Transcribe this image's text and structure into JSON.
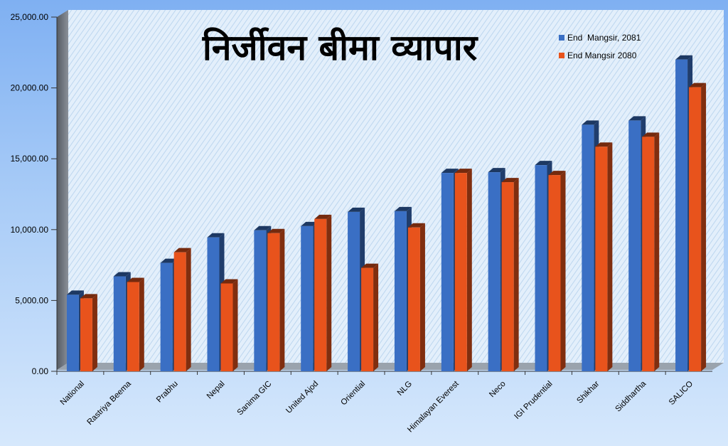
{
  "chart_data": {
    "type": "bar",
    "title": "निर्जीवन बीमा व्यापार",
    "categories": [
      "National",
      "Rastriya Beema",
      "Prabhu",
      "Nepal",
      "Sanima GIC",
      "United Ajod",
      "Oriential",
      "NLG",
      "Himalayan Everest",
      "Neco",
      "IGI Prudential",
      "Shikhar",
      "Siddhartha",
      "SALICO"
    ],
    "series": [
      {
        "name": "End  Mangsir, 2081",
        "color": "#3a6fc4",
        "values": [
          5400,
          6700,
          7650,
          9450,
          9950,
          10250,
          11250,
          11300,
          14000,
          14050,
          14550,
          17400,
          17700,
          22000
        ]
      },
      {
        "name": "End Mangsir 2080",
        "color": "#e8531c",
        "values": [
          5150,
          6300,
          8400,
          6200,
          9750,
          10750,
          7300,
          10150,
          14000,
          13350,
          13850,
          15850,
          16550,
          20050
        ]
      }
    ],
    "yticks": [
      "0.00",
      "5,000.00",
      "10,000.00",
      "15,000.00",
      "20,000.00",
      "25,000.00"
    ],
    "ylim": [
      0,
      25000
    ],
    "legend_position": "top-right",
    "grid": false
  }
}
